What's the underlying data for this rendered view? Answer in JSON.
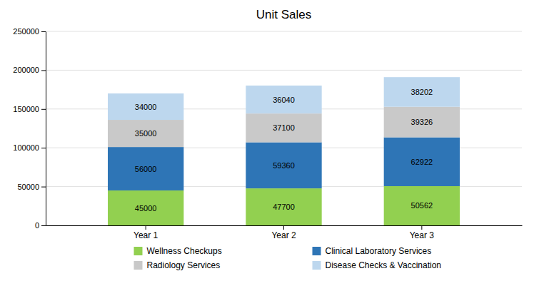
{
  "chart_data": {
    "type": "bar",
    "title": "Unit Sales",
    "categories": [
      "Year 1",
      "Year 2",
      "Year 3"
    ],
    "series": [
      {
        "name": "Wellness Checkups",
        "color": "#92d050",
        "values": [
          45000,
          47700,
          50562
        ]
      },
      {
        "name": "Clinical Laboratory Services",
        "color": "#2e75b6",
        "values": [
          56000,
          59360,
          62922
        ]
      },
      {
        "name": "Radiology Services",
        "color": "#c9c9c9",
        "values": [
          35000,
          37100,
          39326
        ]
      },
      {
        "name": "Disease Checks & Vaccination",
        "color": "#bdd7ee",
        "values": [
          34000,
          36040,
          38202
        ]
      }
    ],
    "stacked": true,
    "data_labels": true,
    "ylim": [
      0,
      250000
    ],
    "yticks": [
      0,
      50000,
      100000,
      150000,
      200000,
      250000
    ],
    "grid": true,
    "legend": "bottom"
  }
}
